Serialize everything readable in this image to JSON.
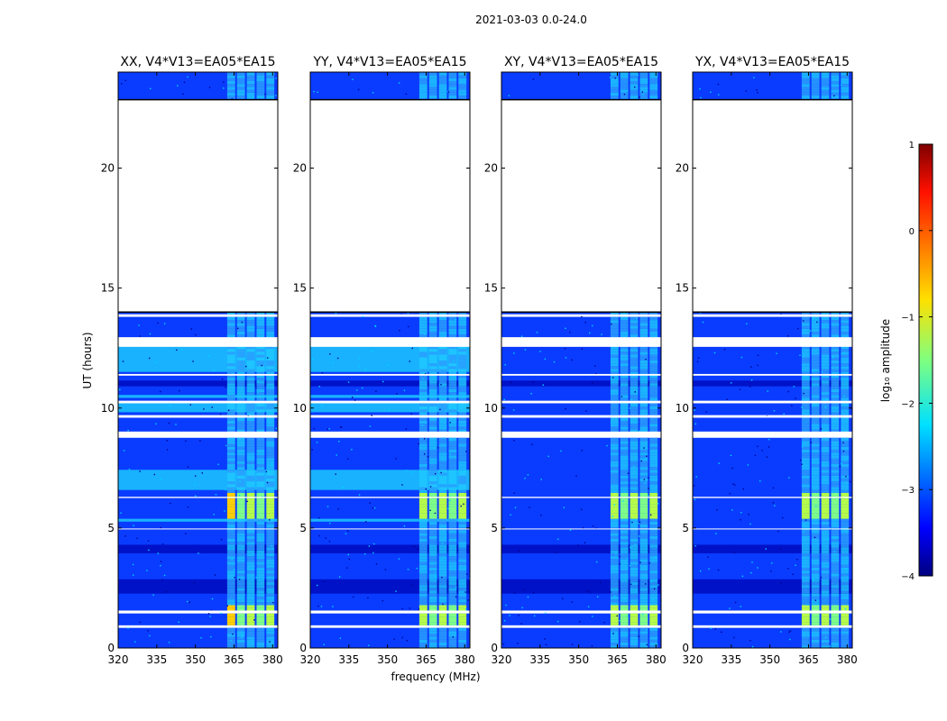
{
  "chart_data": {
    "type": "heatmap",
    "title": "2021-03-03 0.0-24.0",
    "colormap": "jet",
    "panels": [
      {
        "title": "XX, V4*V13=EA05*EA15",
        "polarization": "XX",
        "parallel_hand": true
      },
      {
        "title": "YY, V4*V13=EA05*EA15",
        "polarization": "YY",
        "parallel_hand": true
      },
      {
        "title": "XY, V4*V13=EA05*EA15",
        "polarization": "XY",
        "parallel_hand": false
      },
      {
        "title": "YX, V4*V13=EA05*EA15",
        "polarization": "YX",
        "parallel_hand": false
      }
    ],
    "xlabel": "frequency (MHz)",
    "ylabel": "UT (hours)",
    "xlim": [
      320,
      382
    ],
    "ylim": [
      0,
      24
    ],
    "xticks": [
      320,
      335,
      350,
      365,
      380
    ],
    "yticks": [
      0,
      5,
      10,
      15,
      20
    ],
    "xtick_labels": [
      "320",
      "335",
      "350",
      "365",
      "380"
    ],
    "ytick_labels": [
      "0",
      "5",
      "10",
      "15",
      "20"
    ],
    "data_gaps_hours": [
      [
        0.87,
        0.92
      ],
      [
        1.48,
        1.56
      ],
      [
        4.95,
        4.98
      ],
      [
        6.25,
        6.3
      ],
      [
        8.78,
        9.02
      ],
      [
        9.6,
        9.66
      ],
      [
        10.2,
        10.26
      ],
      [
        11.35,
        11.42
      ],
      [
        12.55,
        12.95
      ],
      [
        13.85,
        13.9
      ],
      [
        14.0,
        22.85
      ]
    ],
    "rfi_band_mhz": [
      362,
      381
    ],
    "rfi_bright_hours": [
      [
        0.9,
        1.8
      ],
      [
        5.4,
        6.4
      ]
    ],
    "colorbar": {
      "label": "log₁₀ amplitude",
      "min": -4,
      "max": 1,
      "ticks": [
        1,
        0,
        -1,
        -2,
        -3,
        -4
      ],
      "tick_labels": [
        "1",
        "0",
        "−1",
        "−2",
        "−3",
        "−4"
      ]
    }
  }
}
